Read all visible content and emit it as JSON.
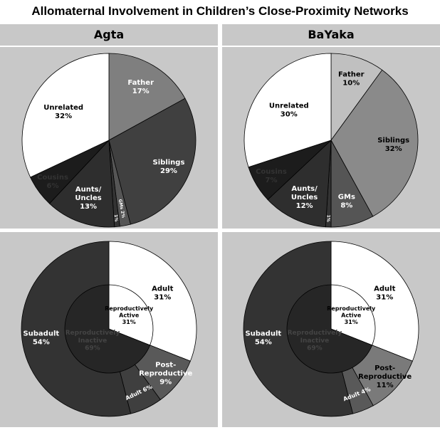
{
  "title": "Allomaternal Involvement in Children’s Close-Proximity Networks",
  "columns": [
    "Agta",
    "BaYaka"
  ],
  "chart_data": [
    {
      "type": "pie",
      "group": "Agta",
      "slices": [
        {
          "label": "Father",
          "value": 17,
          "display": "17%",
          "color": "#7f7f7f",
          "text_color": "#ffffff"
        },
        {
          "label": "Siblings",
          "value": 29,
          "display": "29%",
          "color": "#404040",
          "text_color": "#ffffff"
        },
        {
          "label": "GMs",
          "value": 2,
          "display": "2%",
          "color": "#555555",
          "text_color": "#ffffff"
        },
        {
          "label": "",
          "value": 1,
          "display": "1%",
          "color": "#333333",
          "text_color": "#ffffff"
        },
        {
          "label": "Aunts/ Uncles",
          "value": 13,
          "display": "13%",
          "color": "#2e2e2e",
          "text_color": "#ffffff"
        },
        {
          "label": "Cousins",
          "value": 6,
          "display": "6%",
          "color": "#1c1c1c",
          "text_color": "#333333"
        },
        {
          "label": "Unrelated",
          "value": 32,
          "display": "32%",
          "color": "#ffffff",
          "text_color": "#000000"
        }
      ]
    },
    {
      "type": "pie",
      "group": "BaYaka",
      "slices": [
        {
          "label": "Father",
          "value": 10,
          "display": "10%",
          "color": "#c0c0c0",
          "text_color": "#000000"
        },
        {
          "label": "Siblings",
          "value": 32,
          "display": "32%",
          "color": "#8a8a8a",
          "text_color": "#000000"
        },
        {
          "label": "GMs",
          "value": 8,
          "display": "8%",
          "color": "#555555",
          "text_color": "#ffffff"
        },
        {
          "label": "",
          "value": 1,
          "display": "1%",
          "color": "#333333",
          "text_color": "#ffffff"
        },
        {
          "label": "Aunts/ Uncles",
          "value": 12,
          "display": "12%",
          "color": "#2e2e2e",
          "text_color": "#ffffff"
        },
        {
          "label": "Cousins",
          "value": 7,
          "display": "7%",
          "color": "#1c1c1c",
          "text_color": "#333333"
        },
        {
          "label": "Unrelated",
          "value": 30,
          "display": "30%",
          "color": "#ffffff",
          "text_color": "#000000"
        }
      ]
    },
    {
      "type": "donut",
      "group": "Agta",
      "outer": [
        {
          "label": "Adult",
          "value": 31,
          "display": "31%",
          "color": "#ffffff",
          "text_color": "#000000"
        },
        {
          "label": "Post- Reproductive",
          "value": 9,
          "display": "9%",
          "color": "#595959",
          "text_color": "#ffffff"
        },
        {
          "label": "Adult",
          "value": 6,
          "display": "6%",
          "color": "#3f3f3f",
          "text_color": "#ffffff"
        },
        {
          "label": "Subadult",
          "value": 54,
          "display": "54%",
          "color": "#333333",
          "text_color": "#ffffff"
        }
      ],
      "inner": [
        {
          "label": "Reproductively Active",
          "value": 31,
          "display": "31%",
          "color": "#ffffff",
          "text_color": "#000000"
        },
        {
          "label": "Reproductively Inactive",
          "value": 69,
          "display": "69%",
          "color": "#262626",
          "text_color": "#444444"
        }
      ]
    },
    {
      "type": "donut",
      "group": "BaYaka",
      "outer": [
        {
          "label": "Adult",
          "value": 31,
          "display": "31%",
          "color": "#ffffff",
          "text_color": "#000000"
        },
        {
          "label": "Post- Reproductive",
          "value": 11,
          "display": "11%",
          "color": "#7a7a7a",
          "text_color": "#000000"
        },
        {
          "label": "Adult",
          "value": 4,
          "display": "4%",
          "color": "#595959",
          "text_color": "#ffffff"
        },
        {
          "label": "Subadult",
          "value": 54,
          "display": "54%",
          "color": "#333333",
          "text_color": "#ffffff"
        }
      ],
      "inner": [
        {
          "label": "Reproductively Active",
          "value": 31,
          "display": "31%",
          "color": "#ffffff",
          "text_color": "#000000"
        },
        {
          "label": "Reproductively Inactive",
          "value": 69,
          "display": "69%",
          "color": "#262626",
          "text_color": "#444444"
        }
      ]
    }
  ]
}
